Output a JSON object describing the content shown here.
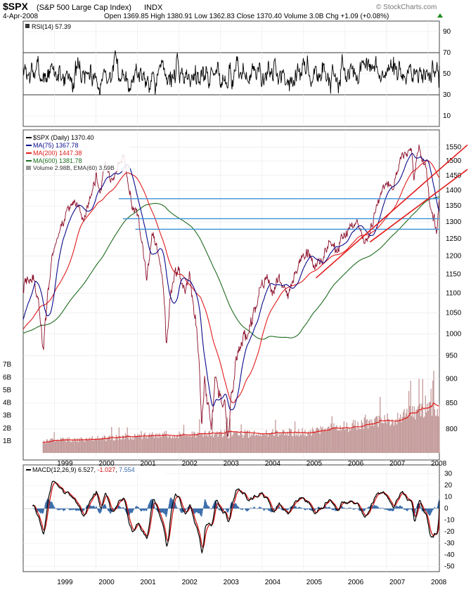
{
  "header": {
    "symbol": "$SPX",
    "name": "(S&P 500 Large Cap Index)",
    "exchange": "INDX",
    "date": "4-Apr-2008",
    "quote_text": "Open 1369.85  High 1380.91  Low 1362.83  Close 1370.40  Volume 3.0B  Chg +1.09 (+0.08%)",
    "brand": "© StockCharts.com"
  },
  "colors": {
    "price": "#8b0f2a",
    "ma75": "#0a0a8c",
    "ma200": "#e11b1b",
    "ma600": "#1e6b1e",
    "volume": "#c49a9a",
    "vol_ema": "#e11b1b",
    "hline": "#3b8fd4",
    "trend": "#e11b1b",
    "macd_line": "#000000",
    "signal_line": "#cc1111",
    "histogram": "#3468a8"
  },
  "chart_data": [
    {
      "type": "line",
      "title": "RSI(14) 57.39",
      "legend": [
        {
          "label": "RSI(14) 57.39"
        }
      ],
      "y_ticks": [
        10,
        30,
        50,
        70,
        90
      ],
      "ylim": [
        0,
        100
      ],
      "reference_lines": [
        30,
        70
      ],
      "x_range": [
        1998.25,
        2008.27
      ],
      "series": [
        {
          "name": "RSI(14)",
          "seed": 7,
          "mean": 50,
          "amplitude": 13,
          "range": [
            14,
            81
          ],
          "last": 57.39
        }
      ]
    },
    {
      "type": "line",
      "title": "$SPX (Daily) 1370.40",
      "legend": [
        {
          "label": "$SPX (Daily) 1370.40",
          "color_key": "price"
        },
        {
          "label": "MA(75) 1367.78",
          "color_key": "ma75"
        },
        {
          "label": "MA(200) 1447.38",
          "color_key": "ma200"
        },
        {
          "label": "MA(600) 1381.78",
          "color_key": "ma600"
        },
        {
          "label": "Volume 2.98B, EMA(60) 3.59B",
          "color_key": "volume"
        }
      ],
      "y_scale": "log",
      "y_ticks": [
        800,
        850,
        900,
        950,
        1000,
        1050,
        1100,
        1150,
        1200,
        1250,
        1300,
        1350,
        1400,
        1450,
        1500,
        1550
      ],
      "ylim": [
        750,
        1600
      ],
      "x_ticks": [
        {
          "label": "1999",
          "x": 1999.0
        },
        {
          "label": "2000",
          "x": 2000.0
        },
        {
          "label": "2001",
          "x": 2001.0
        },
        {
          "label": "2002",
          "x": 2002.0
        },
        {
          "label": "2003",
          "x": 2003.0
        },
        {
          "label": "2004",
          "x": 2004.0
        },
        {
          "label": "2005",
          "x": 2005.0
        },
        {
          "label": "2006",
          "x": 2006.0
        },
        {
          "label": "2007",
          "x": 2007.0
        },
        {
          "label": "2008",
          "x": 2008.0
        }
      ],
      "x_range": [
        1998.25,
        2008.27
      ],
      "price_anchors": [
        [
          1998.25,
          1120
        ],
        [
          1998.35,
          1130
        ],
        [
          1998.5,
          1140
        ],
        [
          1998.62,
          1070
        ],
        [
          1998.72,
          960
        ],
        [
          1998.85,
          1100
        ],
        [
          1999.0,
          1230
        ],
        [
          1999.1,
          1260
        ],
        [
          1999.3,
          1330
        ],
        [
          1999.5,
          1370
        ],
        [
          1999.7,
          1300
        ],
        [
          1999.85,
          1360
        ],
        [
          2000.0,
          1450
        ],
        [
          2000.1,
          1380
        ],
        [
          2000.22,
          1500
        ],
        [
          2000.35,
          1430
        ],
        [
          2000.5,
          1470
        ],
        [
          2000.67,
          1520
        ],
        [
          2000.78,
          1420
        ],
        [
          2000.9,
          1340
        ],
        [
          2001.0,
          1320
        ],
        [
          2001.1,
          1250
        ],
        [
          2001.22,
          1130
        ],
        [
          2001.35,
          1250
        ],
        [
          2001.45,
          1240
        ],
        [
          2001.6,
          1150
        ],
        [
          2001.7,
          980
        ],
        [
          2001.78,
          1070
        ],
        [
          2001.9,
          1150
        ],
        [
          2002.0,
          1150
        ],
        [
          2002.15,
          1110
        ],
        [
          2002.25,
          1140
        ],
        [
          2002.38,
          1040
        ],
        [
          2002.48,
          960
        ],
        [
          2002.55,
          820
        ],
        [
          2002.62,
          900
        ],
        [
          2002.68,
          850
        ],
        [
          2002.78,
          790
        ],
        [
          2002.88,
          900
        ],
        [
          2002.95,
          880
        ],
        [
          2003.1,
          840
        ],
        [
          2003.2,
          810
        ],
        [
          2003.35,
          920
        ],
        [
          2003.5,
          980
        ],
        [
          2003.65,
          1000
        ],
        [
          2003.8,
          1040
        ],
        [
          2004.0,
          1120
        ],
        [
          2004.15,
          1140
        ],
        [
          2004.3,
          1110
        ],
        [
          2004.45,
          1130
        ],
        [
          2004.6,
          1090
        ],
        [
          2004.75,
          1130
        ],
        [
          2004.9,
          1190
        ],
        [
          2005.0,
          1190
        ],
        [
          2005.15,
          1210
        ],
        [
          2005.3,
          1160
        ],
        [
          2005.45,
          1200
        ],
        [
          2005.6,
          1240
        ],
        [
          2005.8,
          1220
        ],
        [
          2006.0,
          1270
        ],
        [
          2006.3,
          1310
        ],
        [
          2006.45,
          1240
        ],
        [
          2006.6,
          1270
        ],
        [
          2006.8,
          1380
        ],
        [
          2007.0,
          1420
        ],
        [
          2007.15,
          1400
        ],
        [
          2007.3,
          1490
        ],
        [
          2007.45,
          1520
        ],
        [
          2007.6,
          1540
        ],
        [
          2007.65,
          1430
        ],
        [
          2007.78,
          1560
        ],
        [
          2007.85,
          1500
        ],
        [
          2007.95,
          1470
        ],
        [
          2008.05,
          1330
        ],
        [
          2008.15,
          1300
        ],
        [
          2008.2,
          1270
        ],
        [
          2008.27,
          1370
        ]
      ],
      "moving_averages": [
        {
          "name": "MA(75)",
          "color_key": "ma75",
          "period_years": 0.3,
          "last": 1367.78
        },
        {
          "name": "MA(200)",
          "color_key": "ma200",
          "period_years": 0.8,
          "last": 1447.38
        },
        {
          "name": "MA(600)",
          "color_key": "ma600",
          "period_years": 2.4,
          "last": 1381.78
        }
      ],
      "horizontal_lines": [
        1373,
        1310,
        1278
      ],
      "trend_lines": [
        {
          "from": [
            2005.3,
            1140
          ],
          "to": [
            2008.27,
            1470
          ]
        },
        {
          "from": [
            2006.6,
            1240
          ],
          "to": [
            2008.27,
            1400
          ]
        }
      ],
      "volume": {
        "label": "Volume 2.98B, EMA(60) 3.59B",
        "axis_ticks": [
          "1B",
          "2B",
          "3B",
          "4B",
          "5B",
          "6B",
          "7B"
        ],
        "ylim": [
          0,
          8
        ],
        "anchors": [
          [
            1998.7,
            0.9
          ],
          [
            2000.0,
            1.1
          ],
          [
            2001.0,
            1.3
          ],
          [
            2002.0,
            1.45
          ],
          [
            2003.0,
            1.45
          ],
          [
            2004.0,
            1.5
          ],
          [
            2005.0,
            1.6
          ],
          [
            2006.0,
            2.0
          ],
          [
            2007.0,
            2.5
          ],
          [
            2007.6,
            3.2
          ],
          [
            2008.27,
            3.6
          ]
        ],
        "last": 2.98,
        "ema_last": 3.59
      }
    },
    {
      "type": "line",
      "title": "MACD(12,26,9) 6.527, -1.027, 7.554",
      "legend": [
        {
          "label": "MACD(12,26,9) 6.527",
          "color_key": "macd_line"
        },
        {
          "label": "-1.027",
          "color_key": "signal_line"
        },
        {
          "label": "7.554",
          "color_key": "histogram"
        }
      ],
      "y_ticks": [
        -50,
        -40,
        -30,
        -20,
        -10,
        0,
        10,
        20,
        30
      ],
      "ylim": [
        -52,
        34
      ],
      "x_range": [
        1998.25,
        2008.27
      ],
      "last": {
        "macd": 6.527,
        "signal": -1.027,
        "histogram": 7.554
      }
    }
  ]
}
